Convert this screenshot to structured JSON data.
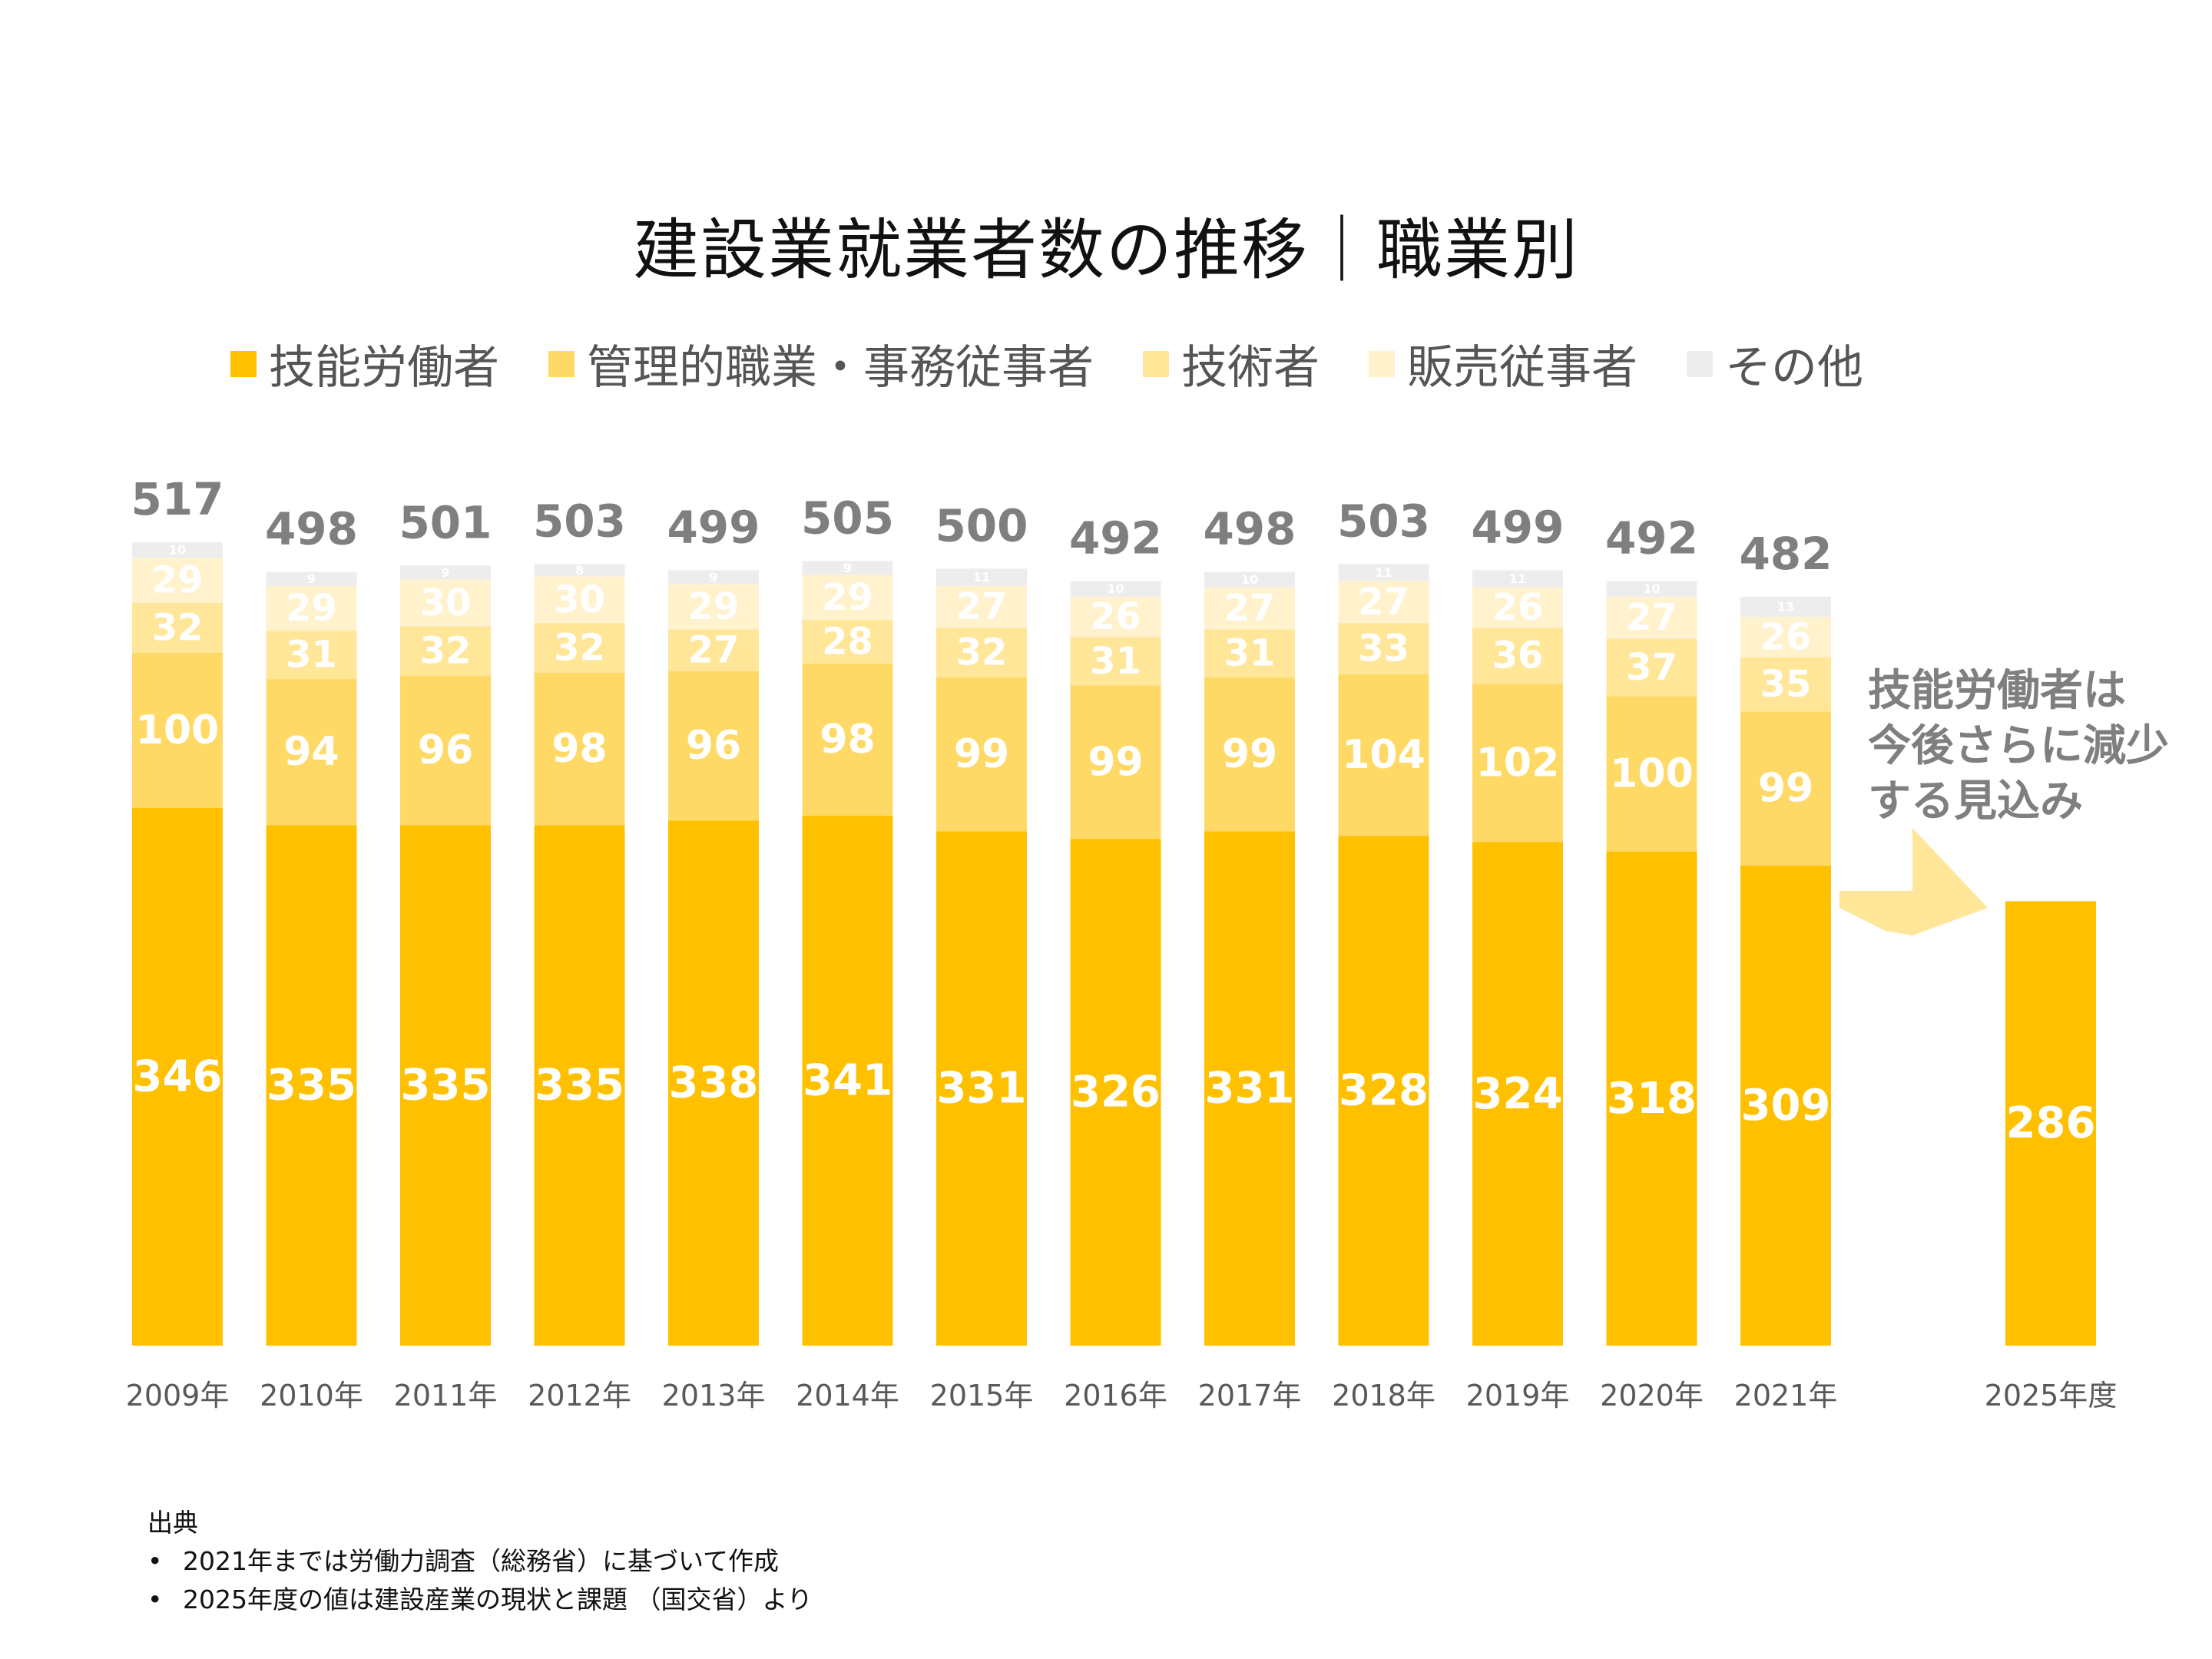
{
  "title": "建設業就業者数の推移｜職業別",
  "legend": [
    {
      "label": "技能労働者",
      "color": "#FFC000"
    },
    {
      "label": "管理的職業・事務従事者",
      "color": "#FFD966"
    },
    {
      "label": "技術者",
      "color": "#FFE699"
    },
    {
      "label": "販売従事者",
      "color": "#FFF2CC"
    },
    {
      "label": "その他",
      "color": "#EDEDED"
    }
  ],
  "annotation": {
    "lines": [
      "技能労働者は",
      "今後さらに減少",
      "する見込み"
    ]
  },
  "source": {
    "heading": "出典",
    "items": [
      "2021年までは労働力調査（総務省）に基づいて作成",
      "2025年度の値は建設産業の現状と課題 （国交省）より"
    ]
  },
  "chart_data": {
    "type": "bar",
    "stacked": true,
    "categories": [
      "2009年",
      "2010年",
      "2011年",
      "2012年",
      "2013年",
      "2014年",
      "2015年",
      "2016年",
      "2017年",
      "2018年",
      "2019年",
      "2020年",
      "2021年",
      "2025年度"
    ],
    "series": [
      {
        "name": "技能労働者",
        "color": "#FFC000",
        "values": [
          346,
          335,
          335,
          335,
          338,
          341,
          331,
          326,
          331,
          328,
          324,
          318,
          309,
          286
        ]
      },
      {
        "name": "管理的職業・事務従事者",
        "color": "#FFD966",
        "values": [
          100,
          94,
          96,
          98,
          96,
          98,
          99,
          99,
          99,
          104,
          102,
          100,
          99,
          null
        ]
      },
      {
        "name": "技術者",
        "color": "#FFE699",
        "values": [
          32,
          31,
          32,
          32,
          27,
          28,
          32,
          31,
          31,
          33,
          36,
          37,
          35,
          null
        ]
      },
      {
        "name": "販売従事者",
        "color": "#FFF2CC",
        "values": [
          29,
          29,
          30,
          30,
          29,
          29,
          27,
          26,
          27,
          27,
          26,
          27,
          26,
          null
        ]
      },
      {
        "name": "その他",
        "color": "#EDEDED",
        "values": [
          10,
          9,
          9,
          8,
          9,
          9,
          11,
          10,
          10,
          11,
          11,
          10,
          13,
          null
        ]
      }
    ],
    "totals": [
      517,
      498,
      501,
      503,
      499,
      505,
      500,
      492,
      498,
      503,
      499,
      492,
      482,
      null
    ],
    "title": "建設業就業者数の推移｜職業別",
    "legend_position": "top",
    "grid": false
  }
}
